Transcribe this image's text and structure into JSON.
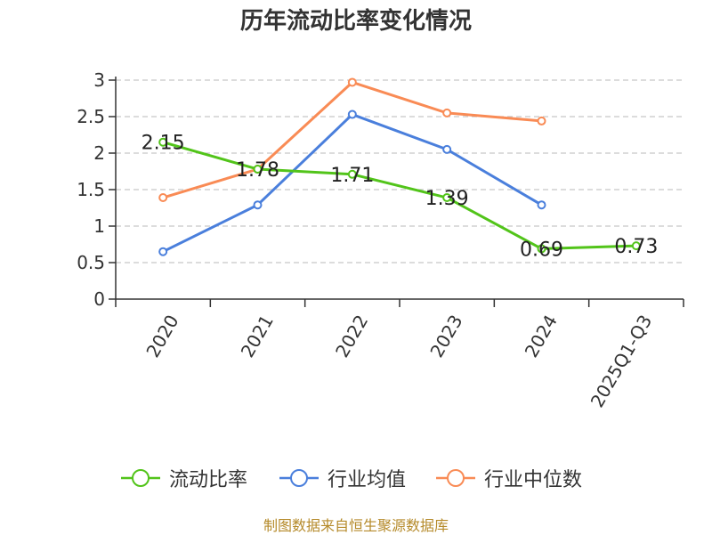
{
  "chart_data": {
    "type": "line",
    "title": "历年流动比率变化情况",
    "categories": [
      "2020",
      "2021",
      "2022",
      "2023",
      "2024",
      "2025Q1-Q3"
    ],
    "ylim": [
      0,
      3
    ],
    "yticks": [
      "0",
      "0.5",
      "1",
      "1.5",
      "2",
      "2.5",
      "3"
    ],
    "grid": true,
    "legend_position": "bottom",
    "series": [
      {
        "name": "流动比率",
        "color": "#52c41a",
        "values": [
          2.15,
          1.78,
          1.71,
          1.39,
          0.69,
          0.73
        ],
        "labels": [
          "2.15",
          "1.78",
          "1.71",
          "1.39",
          "0.69",
          "0.73"
        ]
      },
      {
        "name": "行业均值",
        "color": "#4a7fdc",
        "values": [
          0.65,
          1.29,
          2.53,
          2.05,
          1.29,
          null
        ]
      },
      {
        "name": "行业中位数",
        "color": "#f98b55",
        "values": [
          1.39,
          1.78,
          2.97,
          2.55,
          2.44,
          null
        ]
      }
    ]
  },
  "footer": {
    "source": "制图数据来自恒生聚源数据库"
  }
}
